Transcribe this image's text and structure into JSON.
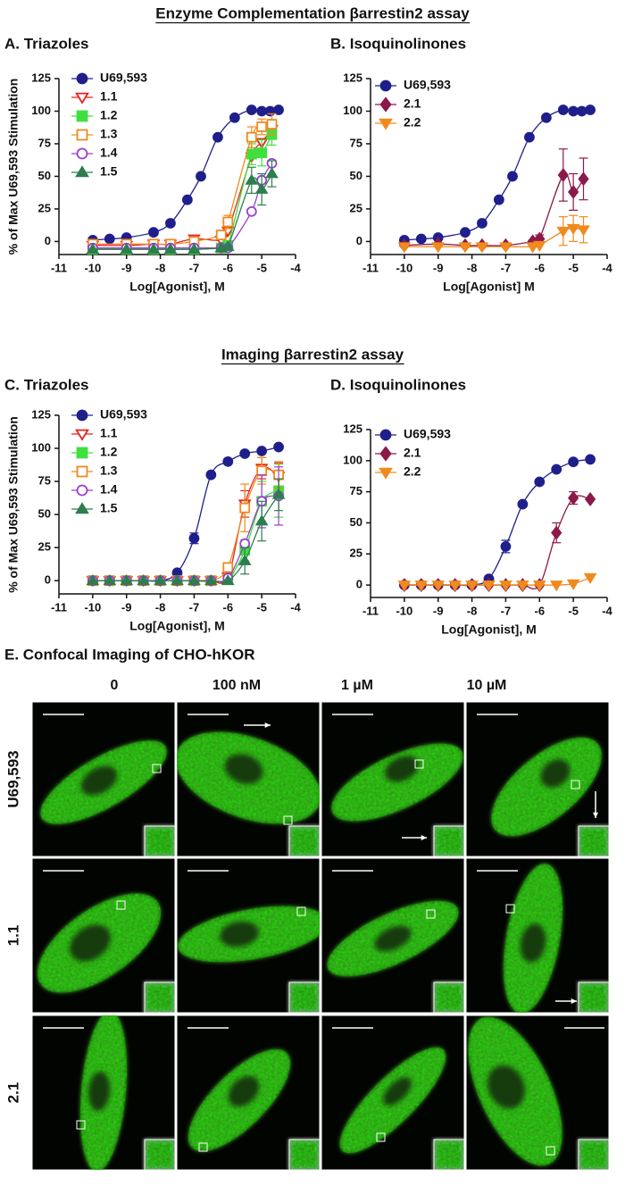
{
  "headers": [
    "Enzyme Complementation βarrestin2 assay",
    "Imaging βarrestin2 assay"
  ],
  "chart_data": [
    {
      "type": "scatter",
      "title": "A. Triazoles",
      "y_label": "% of Max U69,593 Stimulation",
      "x_label": "Log[Agonist], M",
      "xlim": [
        -11,
        -4
      ],
      "xticks": [
        -11,
        -10,
        -9,
        -8,
        -7,
        -6,
        -5,
        -4
      ],
      "ylim": [
        -10,
        125
      ],
      "yticks": [
        0,
        25,
        50,
        75,
        100,
        125
      ],
      "legend": "upper left",
      "curve": true,
      "series": [
        {
          "name": "U69,593",
          "color": "#1f1f8c",
          "marker": "circle",
          "filled": true,
          "x": [
            -10,
            -9.5,
            -9,
            -8.2,
            -7.7,
            -7.2,
            -6.8,
            -6.3,
            -5.8,
            -5.3,
            -5,
            -4.75,
            -4.5
          ],
          "values": [
            1,
            2,
            3,
            7,
            14,
            32,
            50,
            80,
            95,
            101,
            100,
            100,
            101
          ]
        },
        {
          "name": "1.1",
          "color": "#e8201c",
          "marker": "triangle-down",
          "filled": false,
          "x": [
            -10,
            -9,
            -8.2,
            -7.7,
            -7,
            -6.2,
            -6,
            -5.3,
            -5,
            -4.7
          ],
          "values": [
            -3,
            -3,
            -2,
            -2,
            2,
            1,
            8,
            65,
            76,
            86
          ]
        },
        {
          "name": "1.2",
          "color": "#3ee03e",
          "marker": "square",
          "filled": true,
          "x": [
            -10,
            -9,
            -8.2,
            -7.7,
            -7,
            -6.2,
            -6,
            -5.3,
            -5,
            -4.7
          ],
          "values": [
            -6,
            -6,
            -6,
            -6,
            -6,
            -5,
            -3,
            67,
            68,
            82
          ],
          "errors": [
            null,
            null,
            null,
            null,
            null,
            null,
            null,
            8,
            10,
            8
          ]
        },
        {
          "name": "1.3",
          "color": "#f08a1e",
          "marker": "square",
          "filled": false,
          "x": [
            -10,
            -9,
            -8.2,
            -7.7,
            -7,
            -6.2,
            -6,
            -5.3,
            -5,
            -4.7
          ],
          "values": [
            -2,
            -2,
            -2,
            -2,
            0,
            5,
            15,
            80,
            88,
            90
          ],
          "errors": [
            null,
            null,
            null,
            null,
            null,
            null,
            5,
            8,
            6,
            8
          ]
        },
        {
          "name": "1.4",
          "color": "#9a3fd0",
          "marker": "circle",
          "filled": false,
          "x": [
            -10,
            -9,
            -8.2,
            -7.7,
            -7,
            -6.2,
            -6,
            -5.3,
            -5,
            -4.7
          ],
          "values": [
            -5,
            -5,
            -5,
            -5,
            -5,
            -5,
            -5,
            23,
            47,
            60
          ]
        },
        {
          "name": "1.5",
          "color": "#2e7d4f",
          "marker": "triangle-up",
          "filled": true,
          "x": [
            -10,
            -9,
            -8.2,
            -7.7,
            -7,
            -6.2,
            -6,
            -5.3,
            -5,
            -4.7
          ],
          "values": [
            -6,
            -6,
            -6,
            -6,
            -6,
            -5,
            -4,
            47,
            40,
            52
          ],
          "errors": [
            null,
            null,
            null,
            null,
            null,
            null,
            null,
            10,
            12,
            10
          ]
        }
      ]
    },
    {
      "type": "scatter",
      "title": "B. Isoquinolinones",
      "x_label": "Log[Agonist]  M",
      "xlim": [
        -11,
        -4
      ],
      "xticks": [
        -11,
        -10,
        -9,
        -8,
        -7,
        -6,
        -5,
        -4
      ],
      "ylim": [
        -10,
        125
      ],
      "yticks": [
        0,
        25,
        50,
        75,
        100,
        125
      ],
      "legend": "upper left",
      "curve": true,
      "series": [
        {
          "name": "U69,593",
          "color": "#1f1f8c",
          "marker": "circle",
          "filled": true,
          "x": [
            -10,
            -9.5,
            -9,
            -8.2,
            -7.7,
            -7.2,
            -6.8,
            -6.3,
            -5.8,
            -5.3,
            -5,
            -4.75,
            -4.5
          ],
          "values": [
            1,
            2,
            3,
            7,
            14,
            32,
            50,
            80,
            95,
            101,
            100,
            100,
            101
          ]
        },
        {
          "name": "2.1",
          "color": "#8b1a4a",
          "marker": "diamond",
          "filled": true,
          "x": [
            -10,
            -9,
            -8.2,
            -7.7,
            -7,
            -6.2,
            -6,
            -5.3,
            -5,
            -4.7
          ],
          "values": [
            -3,
            -2,
            -3,
            -3,
            -3,
            0,
            2,
            51,
            38,
            48
          ],
          "errors": [
            null,
            null,
            null,
            null,
            null,
            null,
            3,
            20,
            14,
            16
          ]
        },
        {
          "name": "2.2",
          "color": "#f08a1e",
          "marker": "triangle-down",
          "filled": true,
          "x": [
            -10,
            -9,
            -8.2,
            -7.7,
            -7,
            -6.2,
            -6,
            -5.3,
            -5,
            -4.7
          ],
          "values": [
            -4,
            -4,
            -4,
            -4,
            -4,
            -4,
            -3,
            8,
            10,
            9
          ],
          "errors": [
            null,
            null,
            null,
            null,
            null,
            null,
            null,
            11,
            10,
            10
          ]
        }
      ]
    },
    {
      "type": "scatter",
      "title": "C. Triazoles",
      "y_label": "% of Max U69,593 Stimulation",
      "x_label": "Log[Agonist], M",
      "xlim": [
        -11,
        -4
      ],
      "xticks": [
        -11,
        -10,
        -9,
        -8,
        -7,
        -6,
        -5,
        -4
      ],
      "ylim": [
        -10,
        125
      ],
      "yticks": [
        0,
        25,
        50,
        75,
        100,
        125
      ],
      "legend": "upper left",
      "curve": true,
      "series": [
        {
          "name": "U69,593",
          "color": "#1f1f8c",
          "marker": "circle",
          "filled": true,
          "x": [
            -10,
            -9.5,
            -9,
            -8.5,
            -8,
            -7.5,
            -7,
            -6.5,
            -6,
            -5.5,
            -5,
            -4.5
          ],
          "values": [
            0,
            0,
            0,
            0,
            0,
            6,
            32,
            80,
            90,
            96,
            98,
            101
          ],
          "errors": [
            null,
            null,
            null,
            null,
            null,
            null,
            4,
            null,
            null,
            null,
            null,
            null
          ]
        },
        {
          "name": "1.1",
          "color": "#e8201c",
          "marker": "triangle-down",
          "filled": false,
          "x": [
            -10,
            -9.5,
            -9,
            -8.5,
            -8,
            -7.5,
            -7,
            -6.5,
            -6,
            -5.5,
            -5,
            -4.5
          ],
          "values": [
            0,
            0,
            0,
            0,
            0,
            0,
            0,
            0,
            3,
            58,
            85,
            79
          ],
          "errors": [
            null,
            null,
            null,
            null,
            null,
            null,
            null,
            null,
            null,
            10,
            8,
            10
          ]
        },
        {
          "name": "1.2",
          "color": "#3ee03e",
          "marker": "square",
          "filled": true,
          "x": [
            -10,
            -9.5,
            -9,
            -8.5,
            -8,
            -7.5,
            -7,
            -6.5,
            -6,
            -5.5,
            -5,
            -4.5
          ],
          "values": [
            0,
            0,
            0,
            0,
            0,
            0,
            0,
            0,
            1,
            23,
            60,
            68
          ],
          "errors": [
            null,
            null,
            null,
            null,
            null,
            null,
            null,
            null,
            null,
            8,
            15,
            20
          ]
        },
        {
          "name": "1.3",
          "color": "#f08a1e",
          "marker": "square",
          "filled": false,
          "x": [
            -10,
            -9.5,
            -9,
            -8.5,
            -8,
            -7.5,
            -7,
            -6.5,
            -6,
            -5.5,
            -5,
            -4.5
          ],
          "values": [
            0,
            0,
            0,
            0,
            0,
            0,
            0,
            0,
            10,
            55,
            83,
            80
          ],
          "errors": [
            null,
            null,
            null,
            null,
            null,
            null,
            null,
            null,
            null,
            18,
            10,
            10
          ]
        },
        {
          "name": "1.4",
          "color": "#9a3fd0",
          "marker": "circle",
          "filled": false,
          "x": [
            -10,
            -9.5,
            -9,
            -8.5,
            -8,
            -7.5,
            -7,
            -6.5,
            -6,
            -5.5,
            -5,
            -4.5
          ],
          "values": [
            0,
            0,
            0,
            0,
            0,
            0,
            0,
            0,
            2,
            28,
            60,
            64
          ],
          "errors": [
            null,
            null,
            null,
            null,
            null,
            null,
            null,
            null,
            null,
            null,
            20,
            22
          ]
        },
        {
          "name": "1.5",
          "color": "#2e7d4f",
          "marker": "triangle-up",
          "filled": true,
          "x": [
            -10,
            -9.5,
            -9,
            -8.5,
            -8,
            -7.5,
            -7,
            -6.5,
            -6,
            -5.5,
            -5,
            -4.5
          ],
          "values": [
            0,
            0,
            0,
            0,
            0,
            0,
            0,
            0,
            0,
            15,
            45,
            65
          ],
          "errors": [
            null,
            null,
            null,
            null,
            null,
            null,
            null,
            null,
            null,
            10,
            15,
            12
          ]
        }
      ]
    },
    {
      "type": "scatter",
      "title": "D. Isoquinolinones",
      "x_label": "Log[Agonist], M",
      "xlim": [
        -11,
        -4
      ],
      "xticks": [
        -11,
        -10,
        -9,
        -8,
        -7,
        -6,
        -5,
        -4
      ],
      "ylim": [
        -10,
        125
      ],
      "yticks": [
        0,
        25,
        50,
        75,
        100,
        125
      ],
      "legend": "upper left",
      "curve": true,
      "series": [
        {
          "name": "U69,593",
          "color": "#1f1f8c",
          "marker": "circle",
          "filled": true,
          "x": [
            -10,
            -9.5,
            -9,
            -8.5,
            -8,
            -7.5,
            -7,
            -6.5,
            -6,
            -5.5,
            -5,
            -4.5
          ],
          "values": [
            0,
            0,
            0,
            0,
            0,
            5,
            31,
            65,
            83,
            93,
            99,
            101
          ],
          "errors": [
            null,
            null,
            null,
            null,
            null,
            null,
            5,
            null,
            null,
            null,
            null,
            null
          ]
        },
        {
          "name": "2.1",
          "color": "#8b1a4a",
          "marker": "diamond",
          "filled": true,
          "x": [
            -10,
            -9.5,
            -9,
            -8.5,
            -8,
            -7.5,
            -7,
            -6.5,
            -6,
            -5.5,
            -5,
            -4.5
          ],
          "values": [
            0,
            0,
            0,
            0,
            0,
            0,
            0,
            0,
            0,
            42,
            70,
            69
          ],
          "errors": [
            null,
            null,
            null,
            null,
            null,
            null,
            null,
            null,
            null,
            8,
            5,
            null
          ]
        },
        {
          "name": "2.2",
          "color": "#f08a1e",
          "marker": "triangle-down",
          "filled": true,
          "x": [
            -10,
            -9.5,
            -9,
            -8.5,
            -8,
            -7.5,
            -7,
            -6.5,
            -6,
            -5.5,
            -5,
            -4.5
          ],
          "values": [
            0,
            0,
            0,
            0,
            0,
            0,
            0,
            0,
            0,
            0,
            1,
            6
          ]
        }
      ]
    }
  ],
  "confocal": {
    "title": "E. Confocal Imaging of CHO-hKOR",
    "columns": [
      "0",
      "100 nM",
      "1 µM",
      "10 µM"
    ],
    "rows": [
      "U69,593",
      "1.1",
      "2.1"
    ]
  }
}
